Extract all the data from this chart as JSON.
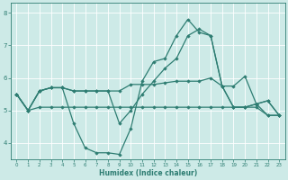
{
  "xlabel": "Humidex (Indice chaleur)",
  "x_values": [
    0,
    1,
    2,
    3,
    4,
    5,
    6,
    7,
    8,
    9,
    10,
    11,
    12,
    13,
    14,
    15,
    16,
    17,
    18,
    19,
    20,
    21,
    22,
    23
  ],
  "series": [
    {
      "y": [
        5.5,
        5.0,
        5.6,
        5.7,
        5.7,
        5.6,
        5.6,
        5.6,
        5.6,
        5.6,
        5.8,
        5.8,
        5.8,
        5.85,
        5.9,
        5.9,
        5.9,
        6.0,
        5.75,
        5.75,
        6.05,
        5.2,
        5.3,
        4.85
      ],
      "color": "#2e7d72",
      "linewidth": 0.9,
      "marker": "D",
      "markersize": 1.8
    },
    {
      "y": [
        5.5,
        5.0,
        5.6,
        5.7,
        5.7,
        5.6,
        5.6,
        5.6,
        5.6,
        4.6,
        5.0,
        5.5,
        5.9,
        6.3,
        6.6,
        7.3,
        7.5,
        7.3,
        5.75,
        5.1,
        5.1,
        5.2,
        5.3,
        4.85
      ],
      "color": "#2e7d72",
      "linewidth": 0.9,
      "marker": "D",
      "markersize": 1.8
    },
    {
      "y": [
        5.5,
        5.0,
        5.6,
        5.7,
        5.7,
        4.6,
        3.85,
        3.7,
        3.7,
        3.65,
        4.45,
        5.9,
        6.5,
        6.6,
        7.3,
        7.8,
        7.4,
        7.3,
        5.75,
        5.1,
        5.1,
        5.2,
        4.85,
        4.85
      ],
      "color": "#2e7d72",
      "linewidth": 0.9,
      "marker": "D",
      "markersize": 1.8
    },
    {
      "y": [
        5.5,
        5.0,
        5.1,
        5.1,
        5.1,
        5.1,
        5.1,
        5.1,
        5.1,
        5.1,
        5.1,
        5.1,
        5.1,
        5.1,
        5.1,
        5.1,
        5.1,
        5.1,
        5.1,
        5.1,
        5.1,
        5.1,
        4.85,
        4.85
      ],
      "color": "#2e7d72",
      "linewidth": 0.9,
      "marker": "D",
      "markersize": 1.8
    }
  ],
  "bg_color": "#cdeae7",
  "grid_color": "#b8d8d5",
  "line_color": "#2e7d72",
  "ylim": [
    3.5,
    8.3
  ],
  "yticks": [
    4,
    5,
    6,
    7,
    8
  ],
  "xlim": [
    -0.5,
    23.5
  ],
  "xticks": [
    0,
    1,
    2,
    3,
    4,
    5,
    6,
    7,
    8,
    9,
    10,
    11,
    12,
    13,
    14,
    15,
    16,
    17,
    18,
    19,
    20,
    21,
    22,
    23
  ]
}
